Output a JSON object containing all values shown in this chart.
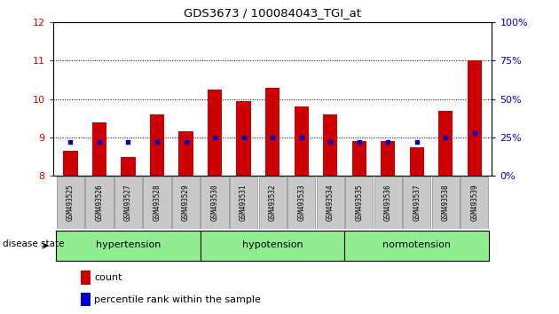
{
  "title": "GDS3673 / 100084043_TGI_at",
  "samples": [
    "GSM493525",
    "GSM493526",
    "GSM493527",
    "GSM493528",
    "GSM493529",
    "GSM493530",
    "GSM493531",
    "GSM493532",
    "GSM493533",
    "GSM493534",
    "GSM493535",
    "GSM493536",
    "GSM493537",
    "GSM493538",
    "GSM493539"
  ],
  "counts": [
    8.65,
    9.4,
    8.5,
    9.6,
    9.15,
    10.25,
    9.95,
    10.3,
    9.8,
    9.6,
    8.9,
    8.9,
    8.75,
    9.7,
    11.0
  ],
  "percentiles": [
    22,
    22,
    22,
    22,
    22,
    25,
    25,
    25,
    25,
    22,
    22,
    22,
    22,
    25,
    28
  ],
  "ylim": [
    8,
    12
  ],
  "yticks": [
    8,
    9,
    10,
    11,
    12
  ],
  "y2lim": [
    0,
    100
  ],
  "y2ticks": [
    0,
    25,
    50,
    75,
    100
  ],
  "y2ticklabels": [
    "0%",
    "25%",
    "50%",
    "75%",
    "100%"
  ],
  "bar_color": "#cc0000",
  "percentile_color": "#0000cc",
  "bar_bottom": 8.0,
  "groups": [
    {
      "label": "hypertension",
      "start": 0,
      "end": 5
    },
    {
      "label": "hypotension",
      "start": 5,
      "end": 10
    },
    {
      "label": "normotension",
      "start": 10,
      "end": 15
    }
  ],
  "group_color": "#90ee90",
  "disease_state_label": "disease state",
  "legend_count_label": "count",
  "legend_percentile_label": "percentile rank within the sample",
  "tick_color_left": "#cc0000",
  "tick_color_right": "#0000cc",
  "xticklabel_bg": "#c8c8c8"
}
